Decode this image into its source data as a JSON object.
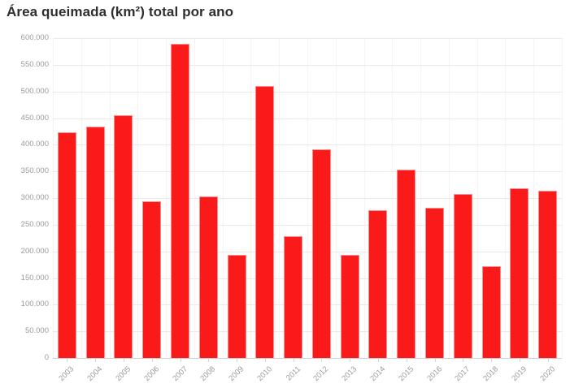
{
  "chart_data": {
    "type": "bar",
    "title": "Área queimada (km²) total por ano",
    "xlabel": "",
    "ylabel": "",
    "categories": [
      "2003",
      "2004",
      "2005",
      "2006",
      "2007",
      "2008",
      "2009",
      "2010",
      "2011",
      "2012",
      "2013",
      "2014",
      "2015",
      "2016",
      "2017",
      "2018",
      "2019",
      "2020"
    ],
    "values": [
      423000,
      434000,
      456000,
      294000,
      589000,
      303000,
      194000,
      510000,
      228000,
      391000,
      194000,
      277000,
      354000,
      281000,
      307000,
      172000,
      318000,
      313000
    ],
    "ylim": [
      0,
      600000
    ],
    "y_tick_step": 50000,
    "y_tick_labels": [
      "0",
      "50.000",
      "100.000",
      "150.000",
      "200.000",
      "250.000",
      "300.000",
      "350.000",
      "400.000",
      "450.000",
      "500.000",
      "550.000",
      "600.000"
    ],
    "grid": "horizontal",
    "legend": "none",
    "bar_color": "#fa1a1a",
    "bar_edge_color": "#fc9c98",
    "grid_color": "#e9e9e9",
    "axis_line_color": "#cfcfcf",
    "tick_label_color": "#9b9b9b",
    "title_color": "#2e2e2e",
    "background_color": "#ffffff"
  }
}
